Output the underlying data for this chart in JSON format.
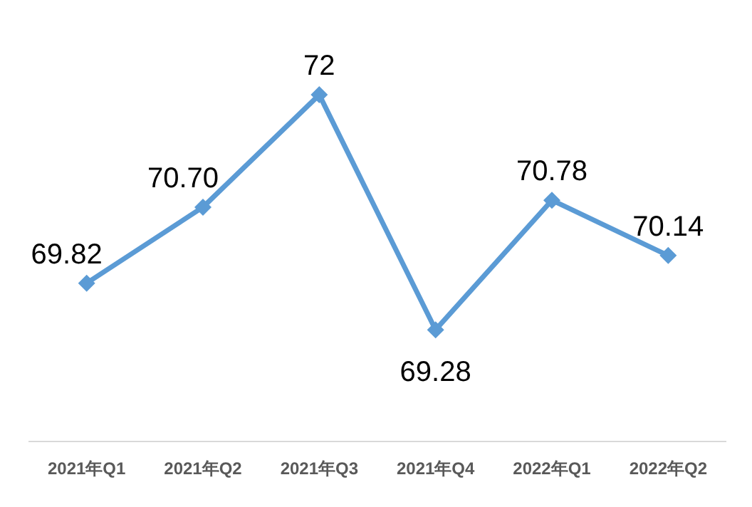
{
  "chart_data": {
    "type": "line",
    "categories": [
      "2021年Q1",
      "2021年Q2",
      "2021年Q3",
      "2021年Q4",
      "2022年Q1",
      "2022年Q2"
    ],
    "series": [
      {
        "color": "#5b9bd5",
        "values": [
          69.82,
          70.7,
          72,
          69.28,
          70.78,
          70.14
        ],
        "value_labels": [
          "69.82",
          "70.70",
          "72",
          "69.28",
          "70.78",
          "70.14"
        ]
      }
    ],
    "marker": "diamond",
    "line_style": "solid",
    "grid": false
  }
}
